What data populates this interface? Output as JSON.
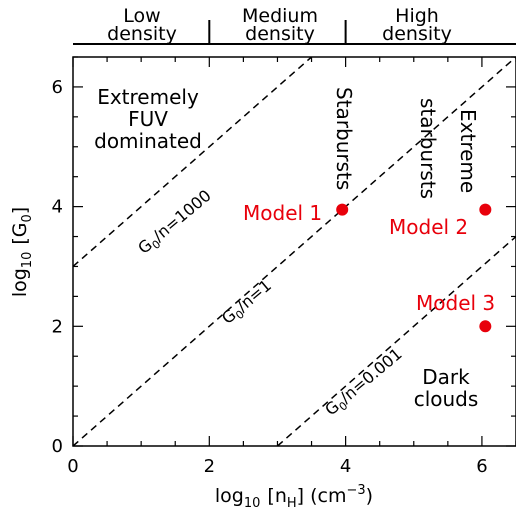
{
  "chart_data": {
    "type": "scatter",
    "xlabel": {
      "main": "log",
      "sub": "10",
      "bracket": "[n",
      "bracket_sub": "H",
      "tail": "] (cm",
      "sup": "−3",
      "close": ")"
    },
    "ylabel": {
      "main": "log",
      "sub": "10",
      "bracket": "[G",
      "bracket_sub": "0",
      "close": "]"
    },
    "xlim": [
      0,
      6.5
    ],
    "ylim": [
      0,
      6.5
    ],
    "xticks": [
      "0",
      "2",
      "4",
      "6"
    ],
    "yticks": [
      "0",
      "2",
      "4",
      "6"
    ],
    "grid": false,
    "points": [
      {
        "x": 3.95,
        "y": 3.95,
        "label": "Model 1",
        "color": "#e8000b"
      },
      {
        "x": 6.05,
        "y": 3.95,
        "label": "Model 2",
        "color": "#e8000b"
      },
      {
        "x": 6.05,
        "y": 2.0,
        "label": "Model 3",
        "color": "#e8000b"
      }
    ],
    "lines": [
      {
        "label_a": "G",
        "label_sub": "0",
        "label_b": "/n=1000",
        "log_ratio": 3
      },
      {
        "label_a": "G",
        "label_sub": "0",
        "label_b": "/n=1",
        "log_ratio": 0
      },
      {
        "label_a": "G",
        "label_sub": "0",
        "label_b": "/n=0.001",
        "log_ratio": -3
      }
    ],
    "density_regions": [
      {
        "line1": "Low",
        "line2": "density"
      },
      {
        "line1": "Medium",
        "line2": "density"
      },
      {
        "line1": "High",
        "line2": "density"
      }
    ],
    "density_dividers": [
      2,
      4
    ],
    "region_labels": {
      "fuv": [
        "Extremely",
        "FUV",
        "dominated"
      ],
      "starbursts": "Starbursts",
      "extreme_starbursts": [
        "Extreme",
        "starbursts"
      ],
      "dark_clouds": [
        "Dark",
        "clouds"
      ]
    }
  }
}
